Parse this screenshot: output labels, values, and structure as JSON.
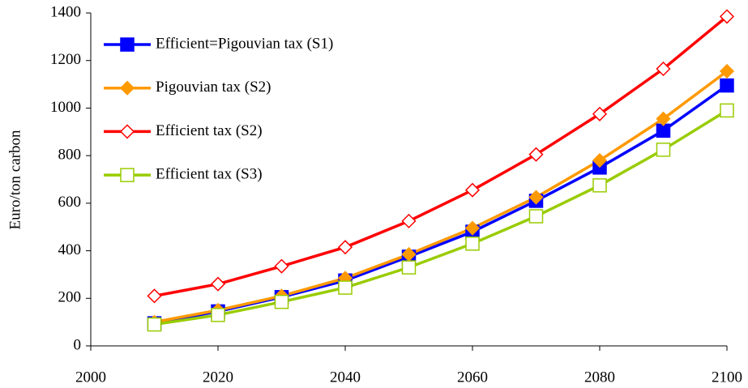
{
  "chart_data": {
    "type": "line",
    "ylabel": "Euro/ton carbon",
    "x": [
      2010,
      2020,
      2030,
      2040,
      2050,
      2060,
      2070,
      2080,
      2090,
      2100
    ],
    "series": [
      {
        "name": "Efficient=Pigouvian tax (S1)",
        "color": "#0000ff",
        "marker": "square",
        "filled": true,
        "values": [
          95,
          145,
          205,
          275,
          375,
          480,
          610,
          750,
          905,
          1095
        ]
      },
      {
        "name": "Pigouvian tax (S2)",
        "color": "#ff9900",
        "marker": "diamond",
        "filled": true,
        "values": [
          100,
          150,
          210,
          285,
          385,
          495,
          625,
          780,
          955,
          1155
        ]
      },
      {
        "name": "Efficient tax (S2)",
        "color": "#ff0000",
        "marker": "diamond",
        "filled": false,
        "values": [
          210,
          260,
          335,
          415,
          525,
          655,
          805,
          975,
          1165,
          1385
        ]
      },
      {
        "name": "Efficient tax (S3)",
        "color": "#99cc00",
        "marker": "square",
        "filled": false,
        "values": [
          90,
          130,
          185,
          245,
          330,
          430,
          545,
          675,
          825,
          990
        ]
      }
    ],
    "xlim": [
      2000,
      2100
    ],
    "xticks": [
      2000,
      2020,
      2040,
      2060,
      2080,
      2100
    ],
    "ylim": [
      0,
      1400
    ],
    "yticks": [
      0,
      200,
      400,
      600,
      800,
      1000,
      1200,
      1400
    ],
    "grid": false,
    "legend": "upper left"
  }
}
